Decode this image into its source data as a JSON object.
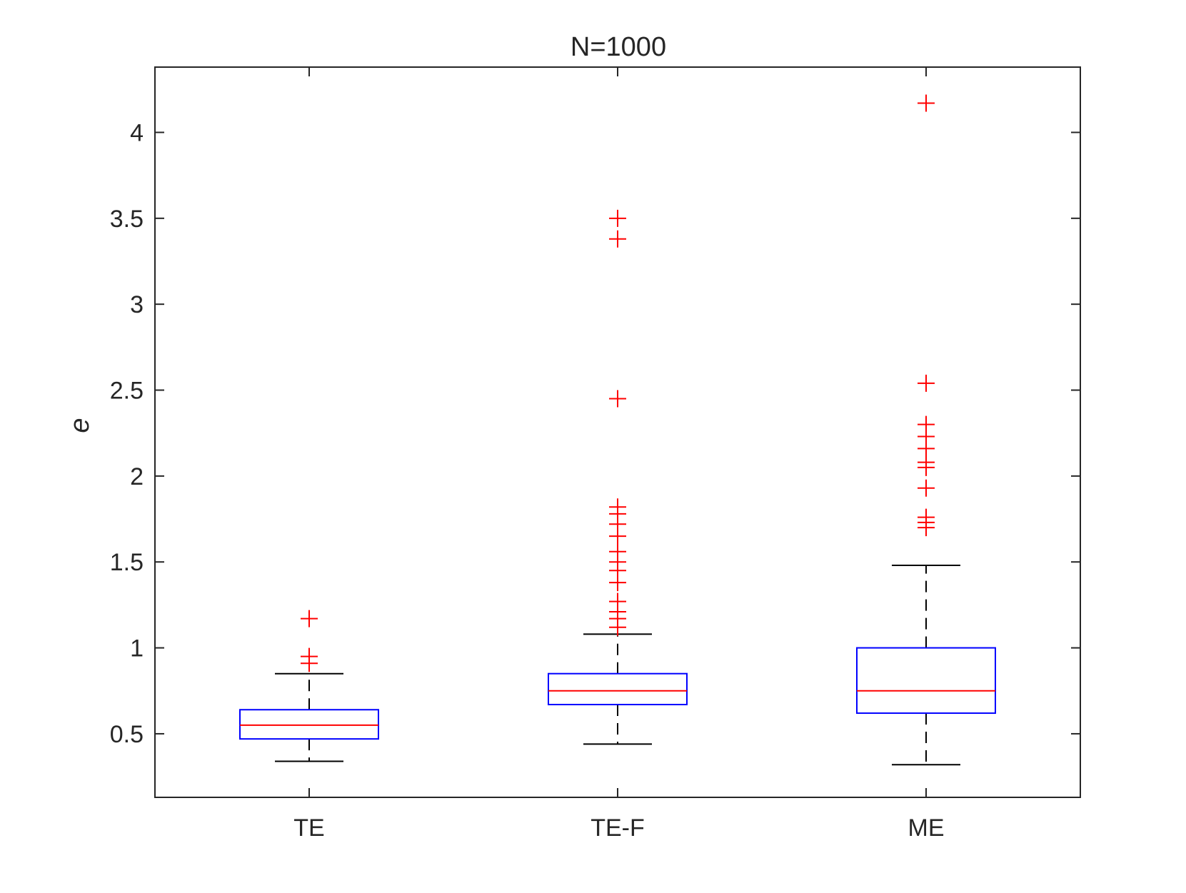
{
  "chart_data": {
    "type": "boxplot",
    "title": "N=1000",
    "xlabel": "",
    "ylabel": "e",
    "ylim": [
      0.13,
      4.38
    ],
    "yticks": [
      0.5,
      1,
      1.5,
      2,
      2.5,
      3,
      3.5,
      4
    ],
    "ytick_labels": [
      "0.5",
      "1",
      "1.5",
      "2",
      "2.5",
      "3",
      "3.5",
      "4"
    ],
    "categories": [
      "TE",
      "TE-F",
      "ME"
    ],
    "boxes": [
      {
        "label": "TE",
        "whisker_low": 0.34,
        "q1": 0.47,
        "median": 0.55,
        "q3": 0.64,
        "whisker_high": 0.85,
        "outliers": [
          0.91,
          0.95,
          1.17
        ]
      },
      {
        "label": "TE-F",
        "whisker_low": 0.44,
        "q1": 0.67,
        "median": 0.75,
        "q3": 0.85,
        "whisker_high": 1.08,
        "outliers": [
          1.12,
          1.17,
          1.21,
          1.27,
          1.38,
          1.45,
          1.5,
          1.56,
          1.65,
          1.72,
          1.78,
          1.82,
          2.45,
          3.38,
          3.5
        ]
      },
      {
        "label": "ME",
        "whisker_low": 0.32,
        "q1": 0.62,
        "median": 0.75,
        "q3": 1.0,
        "whisker_high": 1.48,
        "outliers": [
          1.7,
          1.73,
          1.76,
          1.93,
          2.05,
          2.08,
          2.16,
          2.23,
          2.3,
          2.54,
          4.17
        ]
      }
    ],
    "colors": {
      "box": "#0000ff",
      "median": "#ff0000",
      "outlier": "#ff0000",
      "whisker": "#000000",
      "axes": "#262626"
    },
    "grid": false
  }
}
